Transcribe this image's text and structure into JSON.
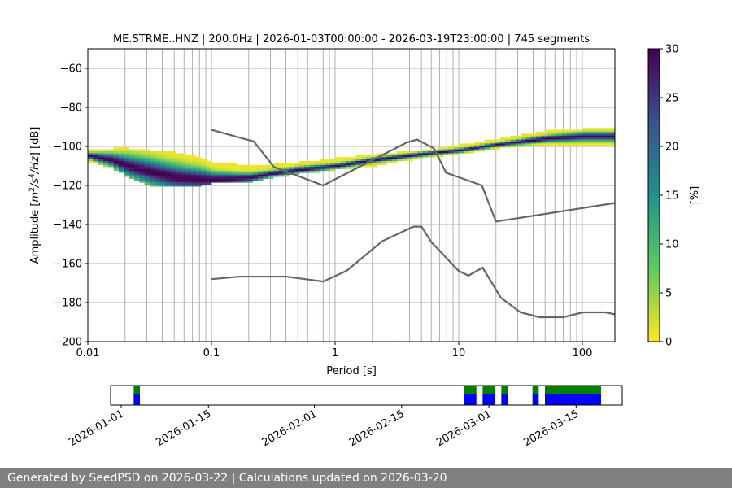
{
  "chart_data": [
    {
      "type": "heatmap",
      "title": "ME.STRME..HNZ | 200.0Hz | 2026-01-03T00:00:00 - 2026-03-19T23:00:00 | 745 segments",
      "xlabel": "Period [s]",
      "ylabel_parts": [
        "Amplitude [",
        "m",
        "2",
        "/",
        "s",
        "4",
        "/",
        "Hz",
        "] [dB]"
      ],
      "x_scale": "log",
      "xlim": [
        0.01,
        183
      ],
      "ylim": [
        -200,
        -50
      ],
      "x_ticks": [
        0.01,
        0.1,
        1,
        10,
        100
      ],
      "x_tick_labels": [
        "0.01",
        "0.1",
        "1",
        "10",
        "100"
      ],
      "y_ticks": [
        -200,
        -180,
        -160,
        -140,
        -120,
        -100,
        -80,
        -60
      ],
      "y_tick_labels": [
        "−200",
        "−180",
        "−160",
        "−140",
        "−120",
        "−100",
        "−80",
        "−60"
      ],
      "grid": true,
      "colorbar": {
        "label": "[%]",
        "range": [
          0,
          30
        ],
        "ticks": [
          "0",
          "5",
          "10",
          "15",
          "20",
          "25",
          "30"
        ],
        "colormap": "viridis_r"
      },
      "psd_density": {
        "periods": [
          0.01,
          0.015,
          0.02,
          0.03,
          0.05,
          0.08,
          0.1,
          0.15,
          0.2,
          0.3,
          0.5,
          1,
          2,
          5,
          10,
          20,
          50,
          100,
          183
        ],
        "mode_db": [
          -105,
          -107,
          -110,
          -113,
          -116,
          -117,
          -117,
          -116.5,
          -116,
          -114,
          -112,
          -110,
          -107,
          -104,
          -102,
          -99,
          -96,
          -95,
          -95
        ],
        "upper_db": [
          -102,
          -101,
          -101,
          -102,
          -103,
          -106,
          -108,
          -109,
          -110,
          -109,
          -108,
          -106,
          -104,
          -102,
          -99,
          -96,
          -92,
          -91,
          -91
        ],
        "lower_db": [
          -107,
          -110,
          -115,
          -119,
          -120,
          -119,
          -118,
          -117,
          -117,
          -115,
          -113,
          -111,
          -109,
          -105,
          -103,
          -100,
          -98,
          -98,
          -98
        ],
        "spread_db": [
          1.5,
          3,
          5,
          6,
          6,
          5,
          3.5,
          2.5,
          2,
          1.5,
          1.5,
          1.2,
          1.2,
          1,
          1,
          1,
          1.5,
          2,
          2
        ]
      },
      "series": [
        {
          "periods": [
            0.1,
            0.22,
            0.32,
            0.8,
            3.8,
            4.6,
            6.3,
            7.9,
            15.4,
            20,
            183
          ],
          "db": [
            -91.5,
            -97.5,
            -110.5,
            -120,
            -98,
            -96.5,
            -101,
            -113.5,
            -120,
            -138.5,
            -129
          ],
          "color": "#666666"
        },
        {
          "periods": [
            0.1,
            0.17,
            0.4,
            0.8,
            1.24,
            2.4,
            4.3,
            5,
            6,
            10,
            12,
            15.6,
            21.9,
            31.6,
            45,
            70,
            101,
            154,
            183
          ],
          "db": [
            -168,
            -166.7,
            -166.7,
            -169.2,
            -163.7,
            -148.6,
            -141.1,
            -141.1,
            -149,
            -163.8,
            -166.2,
            -162.1,
            -177.5,
            -185,
            -187.5,
            -187.5,
            -185,
            -185,
            -186
          ],
          "color": "#666666"
        }
      ]
    },
    {
      "type": "timeline",
      "xlim": [
        "2025-12-30",
        "2026-03-22"
      ],
      "x_ticks": [
        "2026-01-01",
        "2026-01-15",
        "2026-02-01",
        "2026-02-15",
        "2026-03-01",
        "2026-03-15"
      ],
      "coverage_segments": [
        [
          "2026-01-03",
          "2026-01-04"
        ],
        [
          "2026-02-25",
          "2026-02-27"
        ],
        [
          "2026-02-28",
          "2026-03-02"
        ],
        [
          "2026-03-03",
          "2026-03-04"
        ],
        [
          "2026-03-08",
          "2026-03-09"
        ],
        [
          "2026-03-10",
          "2026-03-19"
        ]
      ],
      "colors": {
        "processed": "#008000",
        "available": "#0000ff"
      }
    }
  ],
  "footer": {
    "text": "Generated by SeedPSD on 2026-03-22 | Calculations updated on 2026-03-20"
  }
}
